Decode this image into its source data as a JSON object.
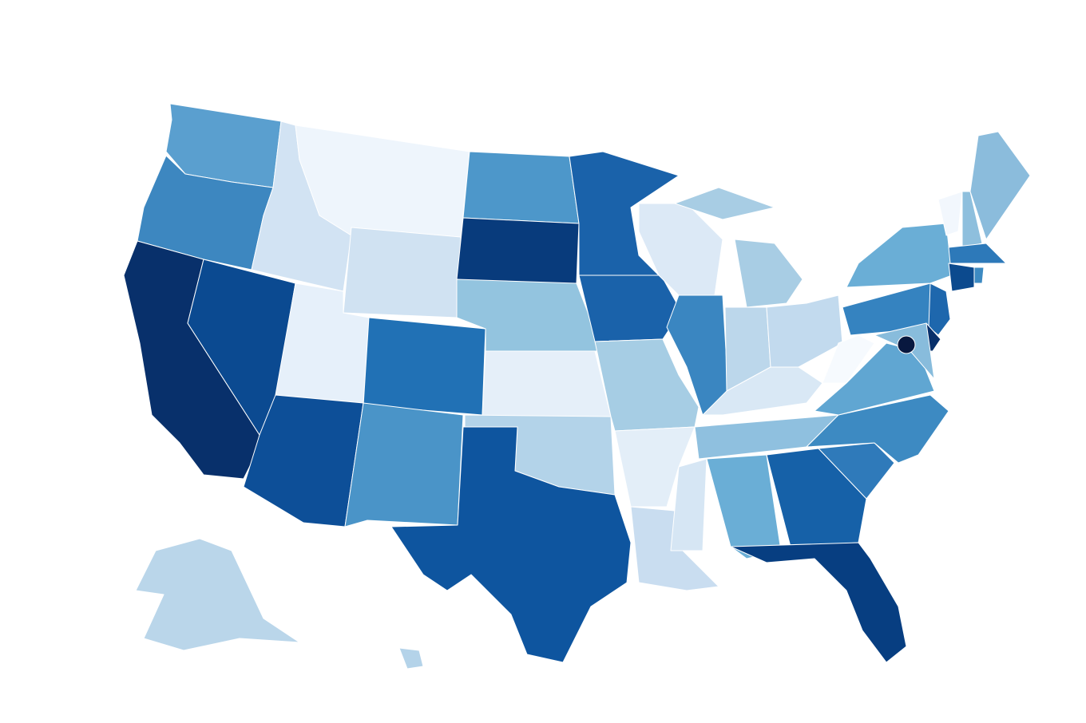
{
  "map": {
    "fills": [
      "#5a9fcf",
      "#3d87c0",
      "#08306b",
      "#0b4a91",
      "#d2e3f3",
      "#eef5fc",
      "#d0e2f2",
      "#e6f0fa",
      "#2171b5",
      "#0d4f98",
      "#4a94c8",
      "#4d97ca",
      "#083b7c",
      "#93c4df",
      "#e5eff9",
      "#b3d3e9",
      "#0e559f",
      "#1a62aa",
      "#1a62aa",
      "#a6cde4",
      "#e3eef8",
      "#c9ddf0",
      "#dce9f6",
      "#3a86c1",
      "#a8cde4",
      "#a8cde4",
      "#bcd7eb",
      "#c2daee",
      "#d9e8f5",
      "#8fc0df",
      "#d6e6f4",
      "#6aaed6",
      "#1661a8",
      "#073e81",
      "#2f7aba",
      "#3d8ac2",
      "#60a6d2",
      "#f6fafe",
      "#3583c0",
      "#6aaed6",
      "#f2f7fd",
      "#8ebfdd",
      "#8bbcdc",
      "#2d79b9",
      "#0c4a8e",
      "#3d8ac2",
      "#1e67ad",
      "#08306b",
      "#88bcdc",
      "#bad6ea",
      "#b4d3e9",
      "#08183f"
    ]
  }
}
